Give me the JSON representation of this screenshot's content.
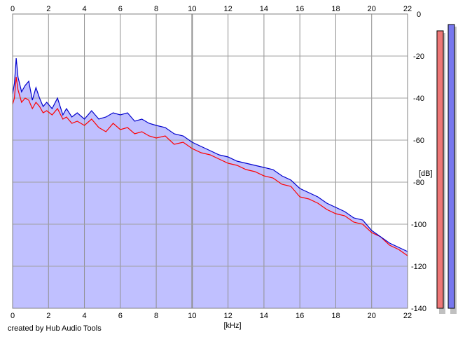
{
  "footer": "created by Hub Audio Tools",
  "chart_data": {
    "type": "area",
    "xlabel": "[kHz]",
    "ylabel": "[dB]",
    "xlim": [
      0,
      22
    ],
    "ylim": [
      -140,
      0
    ],
    "x_ticks": [
      0,
      2,
      4,
      6,
      8,
      10,
      12,
      14,
      16,
      18,
      20,
      22
    ],
    "y_ticks": [
      0,
      -20,
      -40,
      -60,
      -80,
      -100,
      -120,
      -140
    ],
    "x_tick_labels": [
      "0",
      "2",
      "4",
      "6",
      "8",
      "10",
      "12",
      "14",
      "16",
      "18",
      "20",
      "22"
    ],
    "y_tick_labels": [
      "0",
      "-20",
      "-40",
      "-60",
      "-80",
      "-100",
      "-120",
      "-140"
    ],
    "grid": true,
    "x_axis_position": "top-and-bottom",
    "y_axis_position": "right",
    "series": [
      {
        "color": "#ff0000",
        "x": [
          0,
          0.1,
          0.2,
          0.3,
          0.5,
          0.7,
          0.9,
          1.1,
          1.3,
          1.5,
          1.7,
          1.9,
          2.2,
          2.5,
          2.8,
          3.0,
          3.3,
          3.6,
          4.0,
          4.4,
          4.8,
          5.2,
          5.6,
          6.0,
          6.4,
          6.8,
          7.2,
          7.6,
          8.0,
          8.5,
          9.0,
          9.5,
          10.0,
          10.5,
          11.0,
          11.5,
          12.0,
          12.5,
          13.0,
          13.5,
          14.0,
          14.5,
          15.0,
          15.5,
          16.0,
          16.5,
          17.0,
          17.5,
          18.0,
          18.5,
          19.0,
          19.5,
          20.0,
          20.5,
          21.0,
          21.5,
          22.0
        ],
        "values": [
          -43,
          -40,
          -30,
          -36,
          -42,
          -40,
          -41,
          -45,
          -42,
          -44,
          -47,
          -46,
          -48,
          -45,
          -50,
          -49,
          -52,
          -51,
          -53,
          -50,
          -54,
          -56,
          -52,
          -55,
          -54,
          -57,
          -56,
          -58,
          -59,
          -58,
          -62,
          -61,
          -64,
          -66,
          -67,
          -69,
          -71,
          -72,
          -74,
          -75,
          -77,
          -78,
          -81,
          -82,
          -87,
          -88,
          -90,
          -93,
          -95,
          -96,
          -99,
          -100,
          -104,
          -106,
          -110,
          -112,
          -115
        ]
      },
      {
        "color": "#0000cc",
        "fill": "#c0c0ff",
        "x": [
          0,
          0.1,
          0.2,
          0.3,
          0.5,
          0.7,
          0.9,
          1.1,
          1.3,
          1.5,
          1.7,
          1.9,
          2.2,
          2.5,
          2.8,
          3.0,
          3.3,
          3.6,
          4.0,
          4.4,
          4.8,
          5.2,
          5.6,
          6.0,
          6.4,
          6.8,
          7.2,
          7.6,
          8.0,
          8.5,
          9.0,
          9.5,
          10.0,
          10.5,
          11.0,
          11.5,
          12.0,
          12.5,
          13.0,
          13.5,
          14.0,
          14.5,
          15.0,
          15.5,
          16.0,
          16.5,
          17.0,
          17.5,
          18.0,
          18.5,
          19.0,
          19.5,
          20.0,
          20.5,
          21.0,
          21.5,
          22.0
        ],
        "values": [
          -38,
          -33,
          -21,
          -30,
          -37,
          -34,
          -32,
          -41,
          -35,
          -40,
          -44,
          -42,
          -45,
          -40,
          -48,
          -45,
          -49,
          -47,
          -50,
          -46,
          -50,
          -49,
          -47,
          -48,
          -47,
          -51,
          -50,
          -52,
          -53,
          -54,
          -57,
          -58,
          -61,
          -63,
          -65,
          -67,
          -68,
          -70,
          -71,
          -72,
          -73,
          -74,
          -77,
          -79,
          -83,
          -85,
          -87,
          -90,
          -92,
          -94,
          -97,
          -98,
          -103,
          -106,
          -109,
          -111,
          -113
        ]
      }
    ],
    "meters": [
      {
        "channel": "left",
        "color": "#ee7777",
        "level_db": -8
      },
      {
        "channel": "right",
        "color": "#7777ee",
        "level_db": -5
      }
    ]
  }
}
